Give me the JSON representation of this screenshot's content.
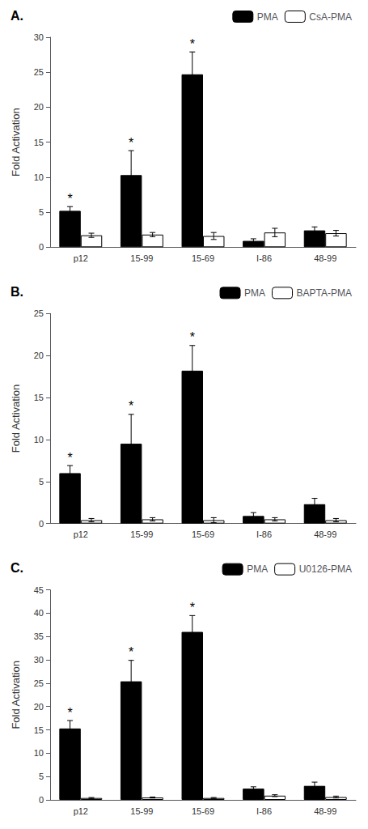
{
  "chart_data": [
    {
      "type": "bar",
      "title": "A.",
      "ylabel": "Fold Activation",
      "categories": [
        "p12",
        "15-99",
        "15-69",
        "I-86",
        "48-99"
      ],
      "series": [
        {
          "name": "PMA",
          "color": "#000000",
          "values": [
            5.2,
            10.3,
            24.7,
            0.9,
            2.4
          ],
          "errors": [
            0.6,
            3.5,
            3.2,
            0.3,
            0.5
          ]
        },
        {
          "name": "CsA-PMA",
          "color": "#ffffff",
          "values": [
            1.7,
            1.8,
            1.6,
            2.1,
            2.0
          ],
          "errors": [
            0.3,
            0.3,
            0.5,
            0.6,
            0.4
          ]
        }
      ],
      "annotations": [
        {
          "text": "*",
          "series": "PMA",
          "category": "p12"
        },
        {
          "text": "*",
          "series": "PMA",
          "category": "15-99"
        },
        {
          "text": "*",
          "series": "PMA",
          "category": "15-69"
        }
      ],
      "ylim": [
        0,
        30
      ],
      "yticks": [
        0,
        5,
        10,
        15,
        20,
        25,
        30
      ],
      "grid": false,
      "legend": "upper right"
    },
    {
      "type": "bar",
      "title": "B.",
      "ylabel": "Fold Activation",
      "categories": [
        "p12",
        "15-99",
        "15-69",
        "I-86",
        "48-99"
      ],
      "series": [
        {
          "name": "PMA",
          "color": "#000000",
          "values": [
            6.0,
            9.5,
            18.2,
            0.9,
            2.3
          ],
          "errors": [
            0.9,
            3.5,
            3.0,
            0.4,
            0.7
          ]
        },
        {
          "name": "BAPTA-PMA",
          "color": "#ffffff",
          "values": [
            0.4,
            0.5,
            0.4,
            0.5,
            0.4
          ],
          "errors": [
            0.2,
            0.2,
            0.3,
            0.2,
            0.2
          ]
        }
      ],
      "annotations": [
        {
          "text": "*",
          "series": "PMA",
          "category": "p12"
        },
        {
          "text": "*",
          "series": "PMA",
          "category": "15-99"
        },
        {
          "text": "*",
          "series": "PMA",
          "category": "15-69"
        }
      ],
      "ylim": [
        0,
        25
      ],
      "yticks": [
        0,
        5,
        10,
        15,
        20,
        25
      ],
      "grid": false,
      "legend": "upper right"
    },
    {
      "type": "bar",
      "title": "C.",
      "ylabel": "Fold Activation",
      "categories": [
        "p12",
        "15-99",
        "15-69",
        "I-86",
        "48-99"
      ],
      "series": [
        {
          "name": "PMA",
          "color": "#000000",
          "values": [
            15.3,
            25.4,
            36.0,
            2.4,
            3.0
          ],
          "errors": [
            1.7,
            4.5,
            3.5,
            0.4,
            0.8
          ]
        },
        {
          "name": "U0126-PMA",
          "color": "#ffffff",
          "values": [
            0.4,
            0.5,
            0.4,
            0.9,
            0.6
          ],
          "errors": [
            0.1,
            0.1,
            0.1,
            0.2,
            0.2
          ]
        }
      ],
      "annotations": [
        {
          "text": "*",
          "series": "PMA",
          "category": "p12"
        },
        {
          "text": "*",
          "series": "PMA",
          "category": "15-99"
        },
        {
          "text": "*",
          "series": "PMA",
          "category": "15-69"
        }
      ],
      "ylim": [
        0,
        45
      ],
      "yticks": [
        0,
        5,
        10,
        15,
        20,
        25,
        30,
        35,
        40,
        45
      ],
      "grid": false,
      "legend": "upper right"
    }
  ]
}
